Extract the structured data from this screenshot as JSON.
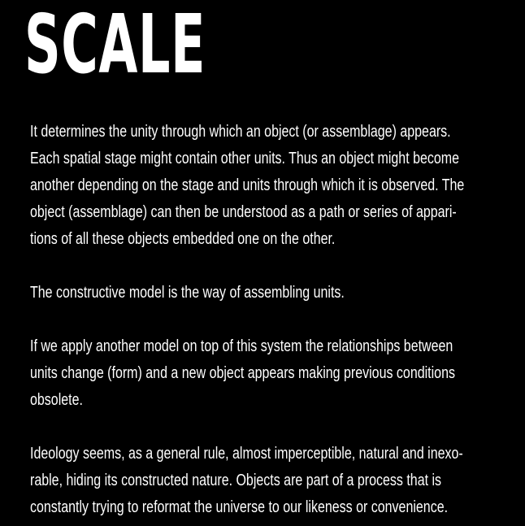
{
  "page": {
    "title": "SCALE",
    "paragraphs": [
      {
        "lines": [
          "It determines the unity through which an object (or assemblage) appears.",
          "Each spatial stage might contain other units. Thus an object might become",
          "another depending on the stage and units through which it is observed. The",
          "object (assemblage) can then be understood as a path or series of appari-",
          "tions of all these objects embedded one on the other."
        ]
      },
      {
        "lines": [
          "The constructive model is the way of assembling units."
        ]
      },
      {
        "lines": [
          "If we apply another model on top of this system the relationships between",
          "units change (form) and a new object appears making previous conditions",
          "obsolete."
        ]
      },
      {
        "lines": [
          "Ideology seems, as a general rule, almost imperceptible, natural and inexo-",
          "rable, hiding its constructed nature. Objects are part of a process that is",
          "constantly trying to reformat the universe to our likeness or convenience."
        ]
      }
    ]
  },
  "colors": {
    "background": "#000000",
    "text": "#ffffff"
  }
}
